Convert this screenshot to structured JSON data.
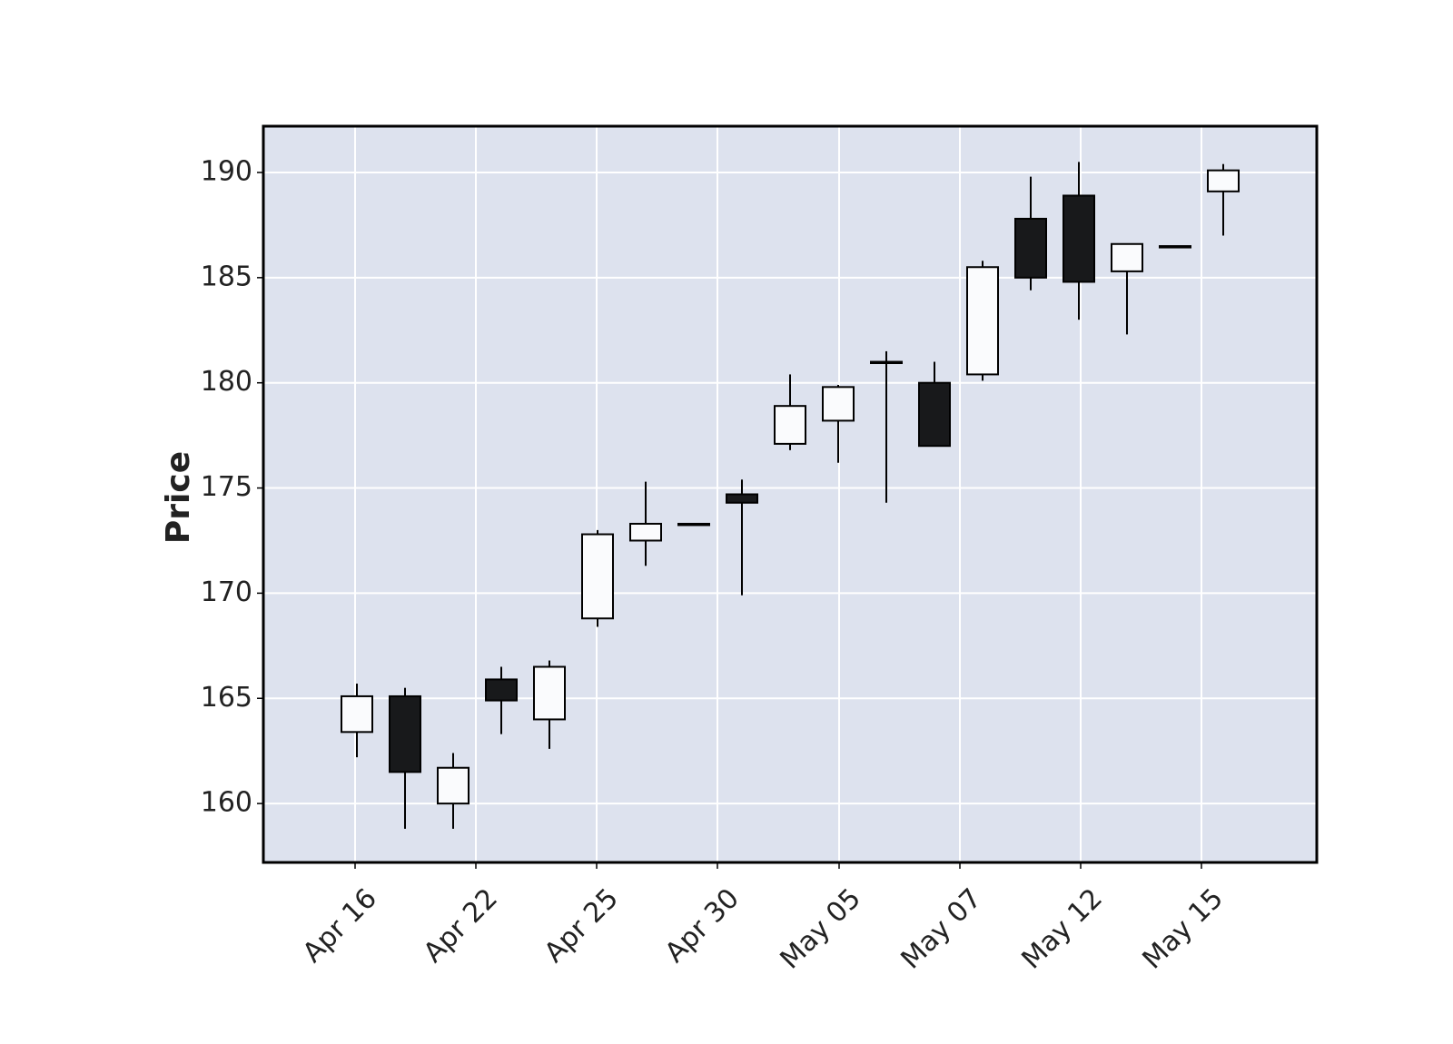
{
  "chart_data": {
    "type": "candlestick",
    "title": "",
    "xlabel": "",
    "ylabel": "Price",
    "ylim": [
      157.2,
      192.2
    ],
    "y_ticks": [
      160,
      165,
      170,
      175,
      180,
      185,
      190
    ],
    "grid": true,
    "x_tick_labels": [
      "Apr 16",
      "Apr 22",
      "Apr 25",
      "Apr 30",
      "May 05",
      "May 07",
      "May 12",
      "May 15"
    ],
    "candles": [
      {
        "open": 163.4,
        "high": 165.7,
        "low": 162.2,
        "close": 165.1
      },
      {
        "open": 165.1,
        "high": 165.5,
        "low": 158.8,
        "close": 161.5
      },
      {
        "open": 160.0,
        "high": 162.4,
        "low": 158.8,
        "close": 161.7
      },
      {
        "open": 165.9,
        "high": 166.5,
        "low": 163.3,
        "close": 164.9
      },
      {
        "open": 164.0,
        "high": 166.8,
        "low": 162.6,
        "close": 166.5
      },
      {
        "open": 168.8,
        "high": 173.0,
        "low": 168.4,
        "close": 172.8
      },
      {
        "open": 172.5,
        "high": 175.3,
        "low": 171.3,
        "close": 173.3
      },
      {
        "open": 173.3,
        "high": 173.3,
        "low": 173.3,
        "close": 173.3
      },
      {
        "open": 174.7,
        "high": 175.4,
        "low": 169.9,
        "close": 174.3
      },
      {
        "open": 177.1,
        "high": 180.4,
        "low": 176.8,
        "close": 178.9
      },
      {
        "open": 178.2,
        "high": 179.9,
        "low": 176.2,
        "close": 179.8
      },
      {
        "open": 181.0,
        "high": 181.5,
        "low": 174.3,
        "close": 181.0
      },
      {
        "open": 180.0,
        "high": 181.0,
        "low": 177.0,
        "close": 177.0
      },
      {
        "open": 180.4,
        "high": 185.8,
        "low": 180.1,
        "close": 185.5
      },
      {
        "open": 187.8,
        "high": 189.8,
        "low": 184.4,
        "close": 185.0
      },
      {
        "open": 188.9,
        "high": 190.5,
        "low": 183.0,
        "close": 184.8
      },
      {
        "open": 185.3,
        "high": 186.6,
        "low": 182.3,
        "close": 186.6
      },
      {
        "open": 186.5,
        "high": 186.5,
        "low": 186.5,
        "close": 186.5
      },
      {
        "open": 189.1,
        "high": 190.4,
        "low": 187.0,
        "close": 190.1
      }
    ],
    "colors": {
      "background": "#ffffff",
      "plot_background": "#dde2ee",
      "grid": "#ffffff",
      "up_fill": "#fafbfd",
      "down_fill": "#18191b",
      "edge": "#000000"
    }
  }
}
